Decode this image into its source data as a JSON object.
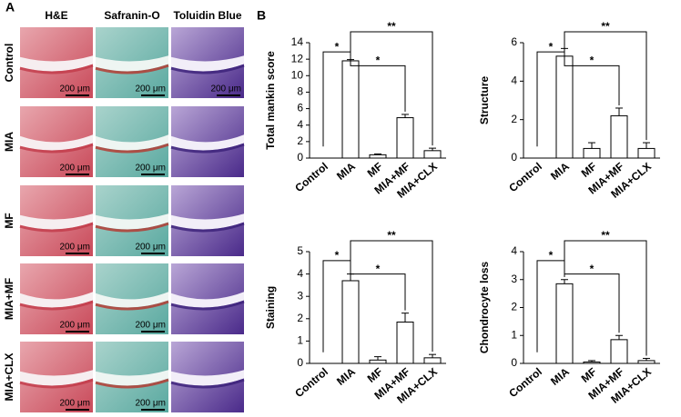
{
  "panel_a": {
    "label": "A",
    "columns": [
      "H&E",
      "Safranin-O",
      "Toluidin Blue"
    ],
    "rows": [
      "Control",
      "MIA",
      "MF",
      "MIA+MF",
      "MIA+CLX"
    ],
    "scale_bar": "200 μm"
  },
  "panel_b_label": "B",
  "chart_data": [
    {
      "type": "bar",
      "ylabel": "Total mankin score",
      "categories": [
        "Control",
        "MIA",
        "MF",
        "MIA+MF",
        "MIA+CLX"
      ],
      "values": [
        0,
        11.8,
        0.4,
        4.9,
        0.9
      ],
      "errors": [
        0,
        0.15,
        0.1,
        0.4,
        0.3
      ],
      "ylim": [
        0,
        14
      ],
      "yticks": [
        0,
        2,
        4,
        6,
        8,
        10,
        12,
        14
      ],
      "color": "#ffffff",
      "annotations": [
        "*",
        "*",
        "**"
      ]
    },
    {
      "type": "bar",
      "ylabel": "Structure",
      "categories": [
        "Control",
        "MIA",
        "MF",
        "MIA+MF",
        "MIA+CLX"
      ],
      "values": [
        0,
        5.3,
        0.5,
        2.2,
        0.5
      ],
      "errors": [
        0,
        0.4,
        0.3,
        0.4,
        0.3
      ],
      "ylim": [
        0,
        6
      ],
      "yticks": [
        0,
        2,
        4,
        6
      ],
      "color": "#ffffff",
      "annotations": [
        "*",
        "*",
        "**"
      ]
    },
    {
      "type": "bar",
      "ylabel": "Staining",
      "categories": [
        "Control",
        "MIA",
        "MF",
        "MIA+MF",
        "MIA+CLX"
      ],
      "values": [
        0,
        3.7,
        0.15,
        1.85,
        0.25
      ],
      "errors": [
        0,
        0.3,
        0.15,
        0.4,
        0.15
      ],
      "ylim": [
        0,
        5
      ],
      "yticks": [
        0,
        1,
        2,
        3,
        4,
        5
      ],
      "color": "#ffffff",
      "annotations": [
        "*",
        "*",
        "**"
      ]
    },
    {
      "type": "bar",
      "ylabel": "Chondrocyte loss",
      "categories": [
        "Control",
        "MIA",
        "MF",
        "MIA+MF",
        "MIA+CLX"
      ],
      "values": [
        0,
        2.85,
        0.05,
        0.85,
        0.1
      ],
      "errors": [
        0,
        0.15,
        0.05,
        0.15,
        0.08
      ],
      "ylim": [
        0,
        4
      ],
      "yticks": [
        0,
        1,
        2,
        3,
        4
      ],
      "color": "#ffffff",
      "annotations": [
        "*",
        "*",
        "**"
      ]
    }
  ]
}
